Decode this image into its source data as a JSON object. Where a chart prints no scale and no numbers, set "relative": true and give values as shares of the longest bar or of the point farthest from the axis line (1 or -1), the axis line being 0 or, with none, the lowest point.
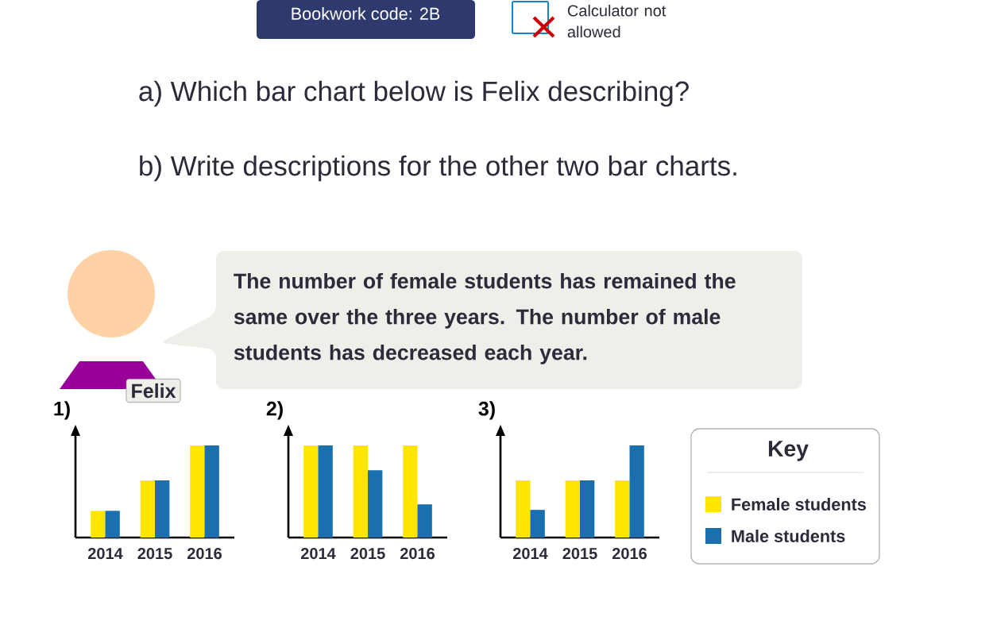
{
  "chart_data": [
    {
      "type": "other",
      "title": "a) Which bar chart below is Felix describing?",
      "subtitle": "b) Write descriptions for the other two bar charts.",
      "annotations": [
        "Bookwork code: 2B",
        "Calculator not allowed",
        "The number of female students has remained the same over the three years. The number of male students has decreased each year.",
        "Felix"
      ]
    },
    {
      "type": "bar",
      "title": "1)",
      "categories": [
        "2014",
        "2015",
        "2016"
      ],
      "relative": true,
      "legend": false,
      "series": [
        {
          "color": "#ffe500",
          "values": [
            0.29,
            0.62,
            1
          ]
        },
        {
          "color": "#1a6faf",
          "values": [
            0.29,
            0.62,
            1
          ]
        }
      ]
    },
    {
      "type": "bar",
      "title": "2)",
      "categories": [
        "2014",
        "2015",
        "2016"
      ],
      "relative": true,
      "legend": false,
      "series": [
        {
          "color": "#ffe500",
          "values": [
            1,
            1,
            1
          ]
        },
        {
          "color": "#1a6faf",
          "values": [
            1,
            0.73,
            0.36
          ]
        }
      ]
    },
    {
      "type": "bar",
      "title": "3)",
      "categories": [
        "2014",
        "2015",
        "2016"
      ],
      "relative": true,
      "legend": "right",
      "legend_title": "Key",
      "series": [
        {
          "name": "Female students",
          "color": "#ffe500",
          "values": [
            0.62,
            0.62,
            0.62
          ]
        },
        {
          "name": "Male students",
          "color": "#1a6faf",
          "values": [
            0.3,
            0.62,
            1
          ]
        }
      ]
    }
  ]
}
